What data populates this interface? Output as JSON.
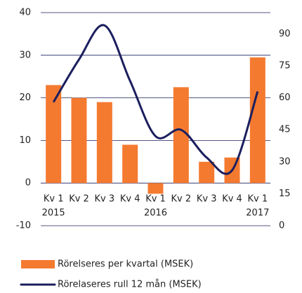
{
  "chart_data": {
    "type": "bar",
    "categories": [
      "Kv 1",
      "Kv 2",
      "Kv 3",
      "Kv 4",
      "Kv 1",
      "Kv 2",
      "Kv 3",
      "Kv 4",
      "Kv 1"
    ],
    "category_years": [
      "2015",
      null,
      null,
      null,
      "2016",
      null,
      null,
      null,
      "2017"
    ],
    "series": [
      {
        "name": "Rörelseres per kvartal (MSEK)",
        "color": "#f47a30",
        "type": "bar",
        "values": [
          23,
          20,
          19,
          9,
          -2.5,
          22.5,
          5,
          6,
          29.5
        ]
      },
      {
        "name": "Rörelaseres rull 12 mån (MSEK)",
        "color": "#1b1f5e",
        "type": "line",
        "axis": "y2",
        "values": [
          58,
          78,
          94,
          68,
          42,
          45,
          32,
          26,
          63
        ]
      }
    ],
    "ylim": [
      -10,
      40
    ],
    "yticks": [
      40,
      30,
      20,
      10,
      0,
      -10
    ],
    "y2lim": [
      0,
      100
    ],
    "y2ticks": [
      90,
      75,
      60,
      45,
      30,
      15,
      0
    ],
    "grid": true
  }
}
